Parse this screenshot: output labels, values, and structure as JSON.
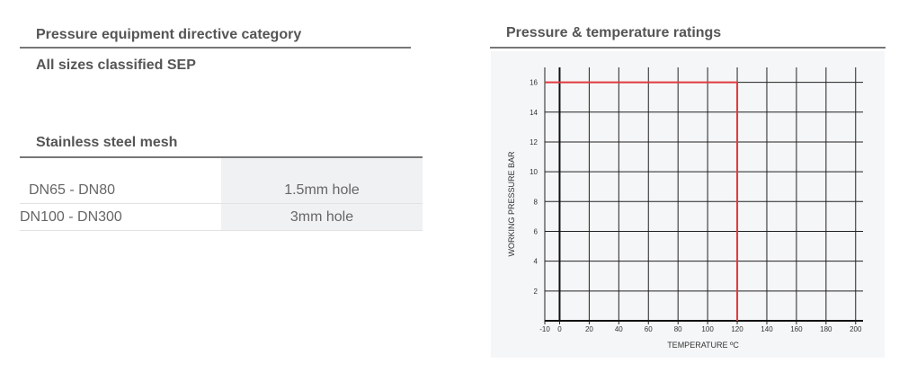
{
  "left": {
    "heading": "Pressure equipment directive category",
    "subheading": "All sizes classified SEP",
    "mesh": {
      "title": "Stainless steel mesh",
      "rows": [
        [
          "DN65 - DN80",
          "1.5mm hole"
        ],
        [
          "DN100 - DN300",
          "3mm hole"
        ]
      ]
    }
  },
  "chart_data": {
    "type": "line",
    "title": "Pressure & temperature ratings",
    "x_label": "TEMPERATURE ºC",
    "y_label": "WORKING PRESSURE BAR",
    "x": [
      -10,
      120,
      120
    ],
    "series": [
      {
        "color": "#e0393e",
        "values": [
          16,
          16,
          0
        ]
      }
    ],
    "xlim": [
      -10,
      205
    ],
    "xticks": [
      -10,
      0,
      20,
      40,
      60,
      80,
      100,
      120,
      140,
      160,
      180,
      200
    ],
    "ylim": [
      0,
      17
    ],
    "yticks": [
      2,
      4,
      6,
      8,
      10,
      12,
      14,
      16
    ],
    "grid": true
  }
}
